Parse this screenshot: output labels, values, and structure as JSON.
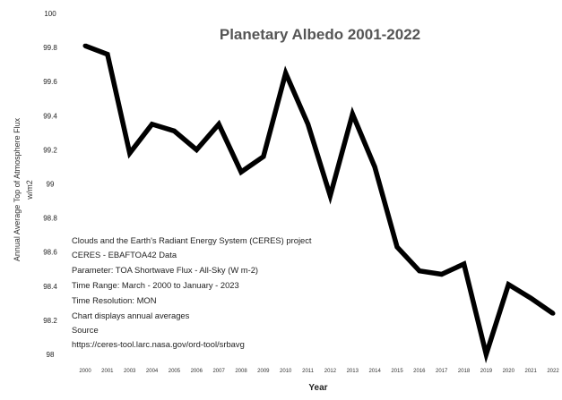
{
  "chart_data": {
    "type": "line",
    "title": "Planetary Albedo 2001-2022",
    "xlabel": "Year",
    "ylabel_line1": "Annual Average Top of Atmosphere Flux",
    "ylabel_line2": "w/m2",
    "ylim": [
      98,
      100
    ],
    "yticks": [
      "98",
      "98.2",
      "98.4",
      "98.6",
      "98.8",
      "99",
      "99.2",
      "99.4",
      "99.6",
      "99.8",
      "100"
    ],
    "categories": [
      "2000",
      "2001",
      "2003",
      "2004",
      "2005",
      "2006",
      "2007",
      "2008",
      "2009",
      "2010",
      "2011",
      "2012",
      "2013",
      "2014",
      "2015",
      "2016",
      "2017",
      "2018",
      "2019",
      "2020",
      "2021",
      "2022"
    ],
    "values": [
      99.81,
      99.76,
      99.18,
      99.35,
      99.31,
      99.2,
      99.35,
      99.07,
      99.16,
      99.65,
      99.35,
      98.93,
      99.41,
      99.1,
      98.63,
      98.49,
      98.47,
      98.53,
      98.0,
      98.41,
      98.33,
      98.24
    ],
    "grid": false,
    "line_color": "#000000",
    "notes": [
      "Clouds and the Earth's Radiant Energy System (CERES) project",
      "CERES - EBAFTOA42 Data",
      "Parameter: TOA Shortwave Flux - All-Sky (W m-2)",
      "Time Range: March - 2000 to January - 2023",
      "Time Resolution: MON",
      "Chart displays annual averages",
      "Source",
      "https://ceres-tool.larc.nasa.gov/ord-tool/srbavg"
    ]
  }
}
